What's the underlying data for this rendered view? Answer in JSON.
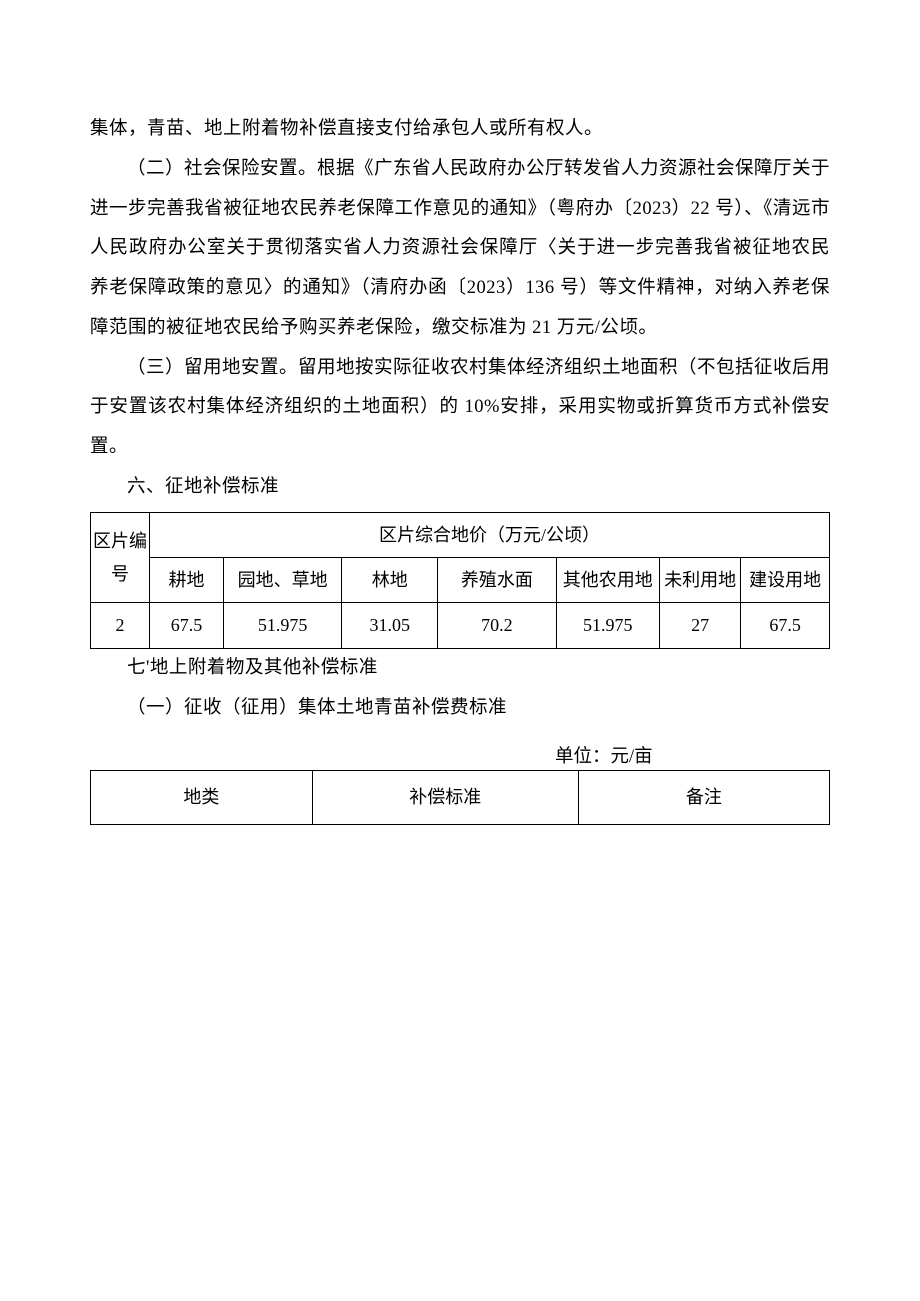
{
  "paragraphs": {
    "p1": "集体，青苗、地上附着物补偿直接支付给承包人或所有权人。",
    "p2": "（二）社会保险安置。根据《广东省人民政府办公厅转发省人力资源社会保障厅关于进一步完善我省被征地农民养老保障工作意见的通知》（粤府办〔2023）22 号）、《清远市人民政府办公室关于贯彻落实省人力资源社会保障厅〈关于进一步完善我省被征地农民养老保障政策的意见〉的通知》（清府办函〔2023）136 号）等文件精神，对纳入养老保障范围的被征地农民给予购买养老保险，缴交标准为 21 万元/公顷。",
    "p3": "（三）留用地安置。留用地按实际征收农村集体经济组织土地面积（不包括征收后用于安置该农村集体经济组织的土地面积）的 10%安排，采用实物或折算货币方式补偿安置。",
    "h6": "六、征地补偿标准",
    "h7": "七'地上附着物及其他补偿标准",
    "h7_1": "（一）征收（征用）集体土地青苗补偿费标准",
    "unit": "单位：元/亩"
  },
  "table1": {
    "header_main": "区片综合地价（万元/公顷）",
    "col_label": "区片编号",
    "columns": [
      "耕地",
      "园地、草地",
      "林地",
      "养殖水面",
      "其他农用地",
      "未利用地",
      "建设用地"
    ],
    "row": {
      "id": "2",
      "values": [
        "67.5",
        "51.975",
        "31.05",
        "70.2",
        "51.975",
        "27",
        "67.5"
      ]
    },
    "col_widths": [
      "8%",
      "10%",
      "16%",
      "13%",
      "16%",
      "14%",
      "11%",
      "12%"
    ]
  },
  "table2": {
    "columns": [
      "地类",
      "补偿标准",
      "备注"
    ],
    "col_widths": [
      "30%",
      "36%",
      "34%"
    ]
  },
  "colors": {
    "text": "#000000",
    "border": "#000000",
    "background": "#ffffff"
  },
  "typography": {
    "body_fontsize": 18.5,
    "font_family": "SimSun",
    "line_height": 2.15
  }
}
